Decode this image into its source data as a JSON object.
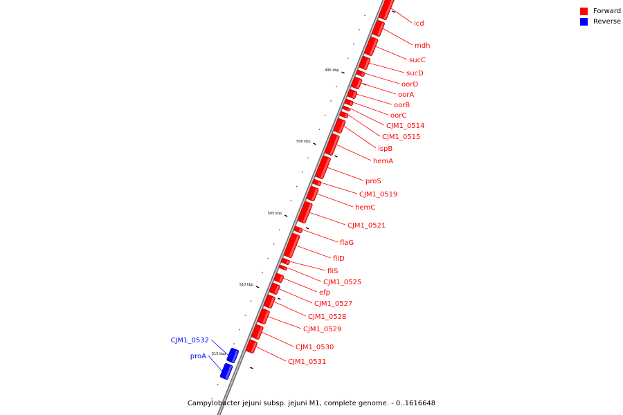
{
  "legend": [
    {
      "label": "Forward",
      "color": "#ff0000"
    },
    {
      "label": "Reverse",
      "color": "#0000ff"
    }
  ],
  "caption": "Campylobacter jejuni subsp. jejuni M1, complete genome. - 0..1616648",
  "scale_ticks": [
    "495 kbp",
    "500 kbp",
    "505 kbp",
    "510 kbp",
    "515 kbp"
  ],
  "genes": [
    {
      "label": "icd",
      "strand": "forward"
    },
    {
      "label": "mdh",
      "strand": "forward"
    },
    {
      "label": "sucC",
      "strand": "forward"
    },
    {
      "label": "sucD",
      "strand": "forward"
    },
    {
      "label": "oorD",
      "strand": "forward"
    },
    {
      "label": "oorA",
      "strand": "forward"
    },
    {
      "label": "oorB",
      "strand": "forward"
    },
    {
      "label": "oorC",
      "strand": "forward"
    },
    {
      "label": "CJM1_0514",
      "strand": "forward"
    },
    {
      "label": "CJM1_0515",
      "strand": "forward"
    },
    {
      "label": "ispB",
      "strand": "forward"
    },
    {
      "label": "hemA",
      "strand": "forward"
    },
    {
      "label": "proS",
      "strand": "forward"
    },
    {
      "label": "CJM1_0519",
      "strand": "forward"
    },
    {
      "label": "hemC",
      "strand": "forward"
    },
    {
      "label": "CJM1_0521",
      "strand": "forward"
    },
    {
      "label": "flaG",
      "strand": "forward"
    },
    {
      "label": "fliD",
      "strand": "forward"
    },
    {
      "label": "fliS",
      "strand": "forward"
    },
    {
      "label": "CJM1_0525",
      "strand": "forward"
    },
    {
      "label": "efp",
      "strand": "forward"
    },
    {
      "label": "CJM1_0527",
      "strand": "forward"
    },
    {
      "label": "CJM1_0528",
      "strand": "forward"
    },
    {
      "label": "CJM1_0529",
      "strand": "forward"
    },
    {
      "label": "CJM1_0530",
      "strand": "forward"
    },
    {
      "label": "CJM1_0531",
      "strand": "forward"
    },
    {
      "label": "CJM1_0532",
      "strand": "reverse"
    },
    {
      "label": "proA",
      "strand": "reverse"
    }
  ]
}
